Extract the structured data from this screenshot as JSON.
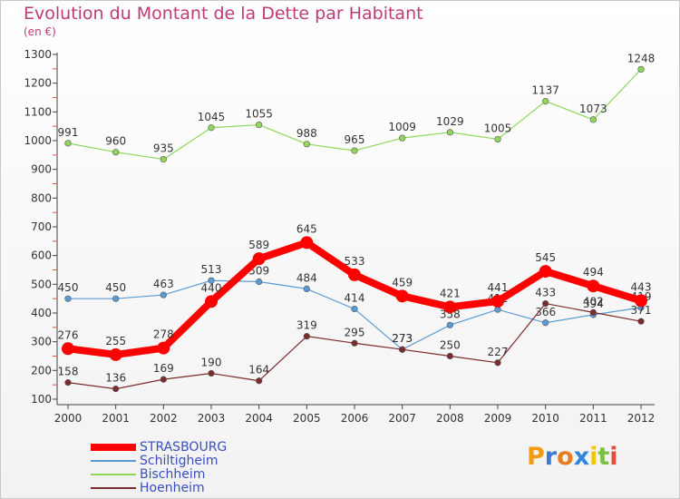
{
  "header": {
    "title": "Evolution du Montant de la Dette par Habitant",
    "unit": "(en €)"
  },
  "brand": {
    "text": "Proxiti",
    "colors": [
      "#f39c12",
      "#3a7bd5",
      "#e67e22",
      "#2e86de",
      "#f1c40f",
      "#7bc043",
      "#e74c3c"
    ]
  },
  "chart_data": {
    "type": "line",
    "title": "Evolution du Montant de la Dette par Habitant",
    "subtitle": "(en €)",
    "xlabel": "",
    "ylabel": "",
    "x": [
      "2000",
      "2001",
      "2002",
      "2003",
      "2004",
      "2005",
      "2006",
      "2007",
      "2008",
      "2009",
      "2010",
      "2011",
      "2012"
    ],
    "ylim": [
      100,
      1300
    ],
    "yticks": [
      100,
      200,
      300,
      400,
      500,
      600,
      700,
      800,
      900,
      1000,
      1100,
      1200,
      1300
    ],
    "grid": false,
    "legend_position": "bottom-left",
    "series": [
      {
        "name": "STRASBOURG",
        "color": "#ff0000",
        "values": [
          276,
          255,
          278,
          440,
          589,
          645,
          533,
          459,
          421,
          441,
          545,
          494,
          443
        ]
      },
      {
        "name": "Schiltigheim",
        "color": "#5b9bd5",
        "values": [
          450,
          450,
          463,
          513,
          509,
          484,
          414,
          273,
          358,
          412,
          366,
          394,
          419
        ]
      },
      {
        "name": "Bischheim",
        "color": "#8fd65a",
        "values": [
          991,
          960,
          935,
          1045,
          1055,
          988,
          965,
          1009,
          1029,
          1005,
          1137,
          1073,
          1248
        ]
      },
      {
        "name": "Hoenheim",
        "color": "#7b2c2c",
        "values": [
          158,
          136,
          169,
          190,
          164,
          319,
          295,
          273,
          250,
          227,
          433,
          402,
          371
        ]
      }
    ]
  }
}
